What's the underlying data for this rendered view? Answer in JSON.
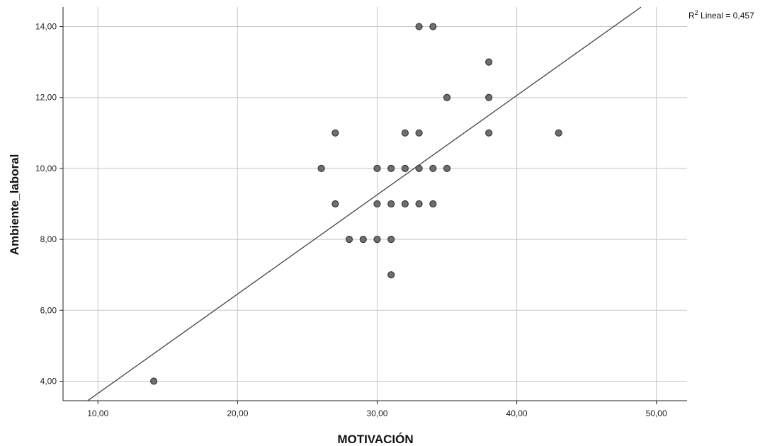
{
  "chart_data": {
    "type": "scatter",
    "xlabel": "MOTIVACIÓN",
    "ylabel": "Ambiente_laboral",
    "xlim": [
      7.5,
      52.2
    ],
    "ylim": [
      3.45,
      14.55
    ],
    "x_ticks": [
      "10,00",
      "20,00",
      "30,00",
      "40,00",
      "50,00"
    ],
    "x_tick_values": [
      10,
      20,
      30,
      40,
      50
    ],
    "y_ticks": [
      "4,00",
      "6,00",
      "8,00",
      "10,00",
      "12,00",
      "14,00"
    ],
    "y_tick_values": [
      4,
      6,
      8,
      10,
      12,
      14
    ],
    "grid": true,
    "points": [
      {
        "x": 14,
        "y": 4
      },
      {
        "x": 26,
        "y": 10
      },
      {
        "x": 27,
        "y": 11
      },
      {
        "x": 27,
        "y": 9
      },
      {
        "x": 28,
        "y": 8
      },
      {
        "x": 29,
        "y": 8
      },
      {
        "x": 30,
        "y": 10
      },
      {
        "x": 30,
        "y": 9
      },
      {
        "x": 30,
        "y": 8
      },
      {
        "x": 31,
        "y": 10
      },
      {
        "x": 31,
        "y": 9
      },
      {
        "x": 31,
        "y": 8
      },
      {
        "x": 31,
        "y": 7
      },
      {
        "x": 32,
        "y": 11
      },
      {
        "x": 32,
        "y": 10
      },
      {
        "x": 32,
        "y": 9
      },
      {
        "x": 33,
        "y": 14
      },
      {
        "x": 33,
        "y": 11
      },
      {
        "x": 33,
        "y": 10
      },
      {
        "x": 33,
        "y": 9
      },
      {
        "x": 34,
        "y": 14
      },
      {
        "x": 34,
        "y": 10
      },
      {
        "x": 34,
        "y": 9
      },
      {
        "x": 35,
        "y": 12
      },
      {
        "x": 35,
        "y": 10
      },
      {
        "x": 38,
        "y": 13
      },
      {
        "x": 38,
        "y": 12
      },
      {
        "x": 38,
        "y": 11
      },
      {
        "x": 43,
        "y": 11
      }
    ],
    "fit_line": {
      "slope": 0.28,
      "intercept": 0.857
    },
    "annotation": {
      "prefix": "R",
      "superscript": "2",
      "text": " Lineal = 0,457"
    },
    "colors": {
      "point_fill": "#6e6e6e",
      "point_stroke": "#3a3a3a",
      "grid": "#c8c8c8",
      "axis": "#222222",
      "fit_line": "#444444"
    }
  }
}
